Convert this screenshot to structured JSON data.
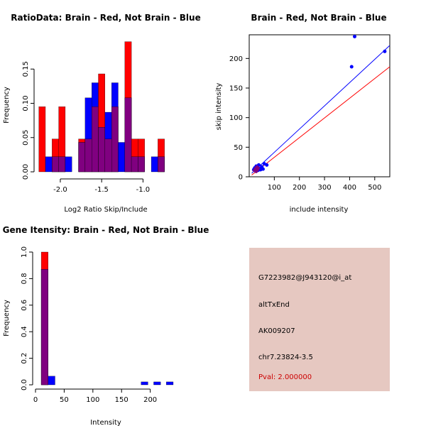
{
  "colors": {
    "brain": "#ff0000",
    "not_brain": "#0000ff",
    "overlap": "#800080",
    "info_bg": "#e6c8c1",
    "pval": "#cc0000"
  },
  "chart_data": [
    {
      "id": "ratio_hist",
      "type": "bar",
      "title": "RatioData: Brain - Red, Not Brain - Blue",
      "xlabel": "Log2 Ratio Skip/Include",
      "ylabel": "Frequency",
      "xlim": [
        -2.3,
        -0.6
      ],
      "ylim": [
        0,
        0.2
      ],
      "bin_width": 0.08,
      "xticks": [
        -2.0,
        -1.5,
        -1.0
      ],
      "xtick_labels": [
        "-2.0",
        "-1.5",
        "-1.0"
      ],
      "yticks": [
        0.0,
        0.05,
        0.1,
        0.15
      ],
      "ytick_labels": [
        "0.00",
        "0.05",
        "0.10",
        "0.15"
      ],
      "bins": [
        {
          "x0": -2.26,
          "red": 0.095,
          "blue": 0.0
        },
        {
          "x0": -2.18,
          "red": 0.0,
          "blue": 0.022
        },
        {
          "x0": -2.1,
          "red": 0.048,
          "blue": 0.022
        },
        {
          "x0": -2.02,
          "red": 0.095,
          "blue": 0.022
        },
        {
          "x0": -1.94,
          "red": 0.0,
          "blue": 0.022
        },
        {
          "x0": -1.86,
          "red": 0.0,
          "blue": 0.0
        },
        {
          "x0": -1.78,
          "red": 0.048,
          "blue": 0.043
        },
        {
          "x0": -1.7,
          "red": 0.048,
          "blue": 0.108
        },
        {
          "x0": -1.62,
          "red": 0.095,
          "blue": 0.13
        },
        {
          "x0": -1.54,
          "red": 0.143,
          "blue": 0.065
        },
        {
          "x0": -1.46,
          "red": 0.048,
          "blue": 0.087
        },
        {
          "x0": -1.38,
          "red": 0.095,
          "blue": 0.13
        },
        {
          "x0": -1.3,
          "red": 0.0,
          "blue": 0.043
        },
        {
          "x0": -1.22,
          "red": 0.19,
          "blue": 0.108
        },
        {
          "x0": -1.14,
          "red": 0.048,
          "blue": 0.022
        },
        {
          "x0": -1.06,
          "red": 0.048,
          "blue": 0.022
        },
        {
          "x0": -0.98,
          "red": 0.0,
          "blue": 0.0
        },
        {
          "x0": -0.9,
          "red": 0.0,
          "blue": 0.022
        },
        {
          "x0": -0.82,
          "red": 0.048,
          "blue": 0.022
        }
      ]
    },
    {
      "id": "intensity_scatter",
      "type": "scatter",
      "title": "Brain - Red, Not Brain - Blue",
      "xlabel": "include intensity",
      "ylabel": "skip intensity",
      "xlim": [
        0,
        560
      ],
      "ylim": [
        0,
        240
      ],
      "xticks": [
        100,
        200,
        300,
        400,
        500
      ],
      "xtick_labels": [
        "100",
        "200",
        "300",
        "400",
        "500"
      ],
      "yticks": [
        0,
        50,
        100,
        150,
        200
      ],
      "ytick_labels": [
        "0",
        "50",
        "100",
        "150",
        "200"
      ],
      "points": [
        {
          "x": 18,
          "y": 12
        },
        {
          "x": 22,
          "y": 15
        },
        {
          "x": 25,
          "y": 10
        },
        {
          "x": 28,
          "y": 18
        },
        {
          "x": 30,
          "y": 13
        },
        {
          "x": 33,
          "y": 16
        },
        {
          "x": 35,
          "y": 11
        },
        {
          "x": 38,
          "y": 20
        },
        {
          "x": 40,
          "y": 14
        },
        {
          "x": 45,
          "y": 12
        },
        {
          "x": 50,
          "y": 17
        },
        {
          "x": 55,
          "y": 13
        },
        {
          "x": 60,
          "y": 22
        },
        {
          "x": 70,
          "y": 20
        },
        {
          "x": 408,
          "y": 186
        },
        {
          "x": 420,
          "y": 237
        },
        {
          "x": 540,
          "y": 212
        }
      ],
      "lines": [
        {
          "color": "blue",
          "x0": 10,
          "y0": 6,
          "x1": 560,
          "y1": 222
        },
        {
          "color": "red",
          "x0": 10,
          "y0": 3,
          "x1": 560,
          "y1": 186
        }
      ]
    },
    {
      "id": "intensity_hist",
      "type": "bar",
      "title": "Gene Itensity: Brain - Red, Not Brain - Blue",
      "xlabel": "Intensity",
      "ylabel": "Frequency",
      "xlim": [
        0,
        245
      ],
      "ylim": [
        0,
        1.0
      ],
      "bin_width": 12,
      "xticks": [
        0,
        50,
        100,
        150,
        200
      ],
      "xtick_labels": [
        "0",
        "50",
        "100",
        "150",
        "200"
      ],
      "yticks": [
        0.0,
        0.2,
        0.4,
        0.6,
        0.8,
        1.0
      ],
      "ytick_labels": [
        "0.0",
        "0.2",
        "0.4",
        "0.6",
        "0.8",
        "1.0"
      ],
      "bins": [
        {
          "x0": 10,
          "red": 1.0,
          "blue": 0.87
        },
        {
          "x0": 22,
          "red": 0.0,
          "blue": 0.065
        },
        {
          "x0": 184,
          "red": 0.0,
          "blue": 0.022
        },
        {
          "x0": 206,
          "red": 0.0,
          "blue": 0.022
        },
        {
          "x0": 228,
          "red": 0.0,
          "blue": 0.022
        }
      ]
    }
  ],
  "info": {
    "probe": "G7223982@J943120@i_at",
    "event_type": "altTxEnd",
    "accession": "AK009207",
    "location": "chr7.23824-3.5",
    "pval": "Pval: 2.000000"
  }
}
